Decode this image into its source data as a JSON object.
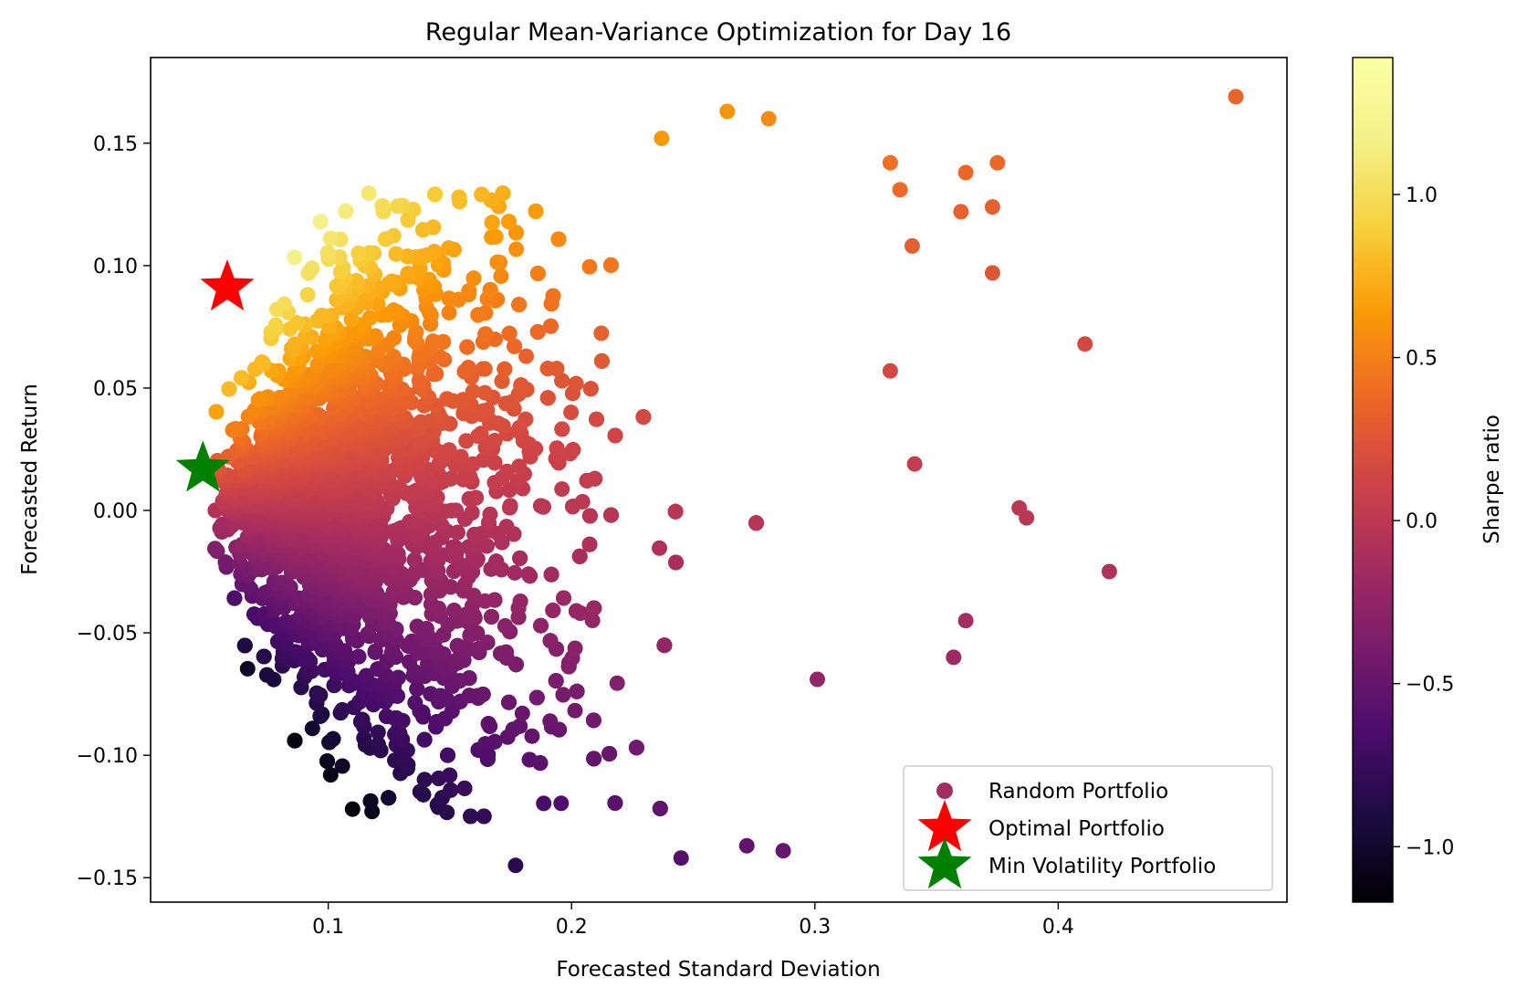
{
  "chart_data": {
    "type": "scatter",
    "title": "Regular Mean-Variance Optimization for Day 16",
    "xlabel": "Forecasted Standard Deviation",
    "ylabel": "Forecasted Return",
    "xlim": [
      0.027,
      0.494
    ],
    "ylim": [
      -0.16,
      0.185
    ],
    "xticks": [
      0.1,
      0.2,
      0.3,
      0.4
    ],
    "xtick_labels": [
      "0.1",
      "0.2",
      "0.3",
      "0.4"
    ],
    "yticks": [
      -0.15,
      -0.1,
      -0.05,
      0.0,
      0.05,
      0.1,
      0.15
    ],
    "ytick_labels": [
      "−0.15",
      "−0.10",
      "−0.05",
      "0.00",
      "0.05",
      "0.10",
      "0.15"
    ],
    "grid": false,
    "colormap": "inferno",
    "colorbar": {
      "label": "Sharpe ratio",
      "range": [
        -1.17,
        1.42
      ],
      "ticks": [
        -1.0,
        -0.5,
        0.0,
        0.5,
        1.0
      ],
      "tick_labels": [
        "−1.0",
        "−0.5",
        "0.0",
        "0.5",
        "1.0"
      ]
    },
    "legend": {
      "placement": "lower right",
      "entries": [
        "Random Portfolio",
        "Optimal Portfolio",
        "Min Volatility Portfolio"
      ]
    },
    "series": [
      {
        "name": "Random Portfolio",
        "marker": "circle",
        "color_by": "Sharpe ratio",
        "approx_count": 10000,
        "note_points": [
          {
            "x": 0.473,
            "y": 0.169
          },
          {
            "x": 0.411,
            "y": 0.068
          },
          {
            "x": 0.421,
            "y": -0.025
          },
          {
            "x": 0.384,
            "y": 0.001
          },
          {
            "x": 0.387,
            "y": -0.003
          },
          {
            "x": 0.373,
            "y": 0.097
          },
          {
            "x": 0.375,
            "y": 0.142
          },
          {
            "x": 0.373,
            "y": 0.124
          },
          {
            "x": 0.362,
            "y": 0.138
          },
          {
            "x": 0.36,
            "y": 0.122
          },
          {
            "x": 0.362,
            "y": -0.045
          },
          {
            "x": 0.357,
            "y": -0.06
          },
          {
            "x": 0.34,
            "y": 0.108
          },
          {
            "x": 0.341,
            "y": 0.019
          },
          {
            "x": 0.335,
            "y": 0.131
          },
          {
            "x": 0.331,
            "y": 0.142
          },
          {
            "x": 0.331,
            "y": 0.057
          },
          {
            "x": 0.264,
            "y": 0.163
          },
          {
            "x": 0.281,
            "y": 0.16
          },
          {
            "x": 0.237,
            "y": 0.152
          },
          {
            "x": 0.177,
            "y": -0.145
          },
          {
            "x": 0.287,
            "y": -0.139
          },
          {
            "x": 0.245,
            "y": -0.142
          },
          {
            "x": 0.272,
            "y": -0.137
          },
          {
            "x": 0.118,
            "y": -0.123
          },
          {
            "x": 0.11,
            "y": -0.122
          },
          {
            "x": 0.101,
            "y": -0.108
          },
          {
            "x": 0.301,
            "y": -0.069
          }
        ]
      },
      {
        "name": "Optimal Portfolio",
        "marker": "star",
        "color": "#ff0000",
        "points": [
          {
            "x": 0.0585,
            "y": 0.091
          }
        ]
      },
      {
        "name": "Min Volatility Portfolio",
        "marker": "star",
        "color": "#008000",
        "points": [
          {
            "x": 0.0485,
            "y": 0.017
          }
        ]
      }
    ]
  }
}
